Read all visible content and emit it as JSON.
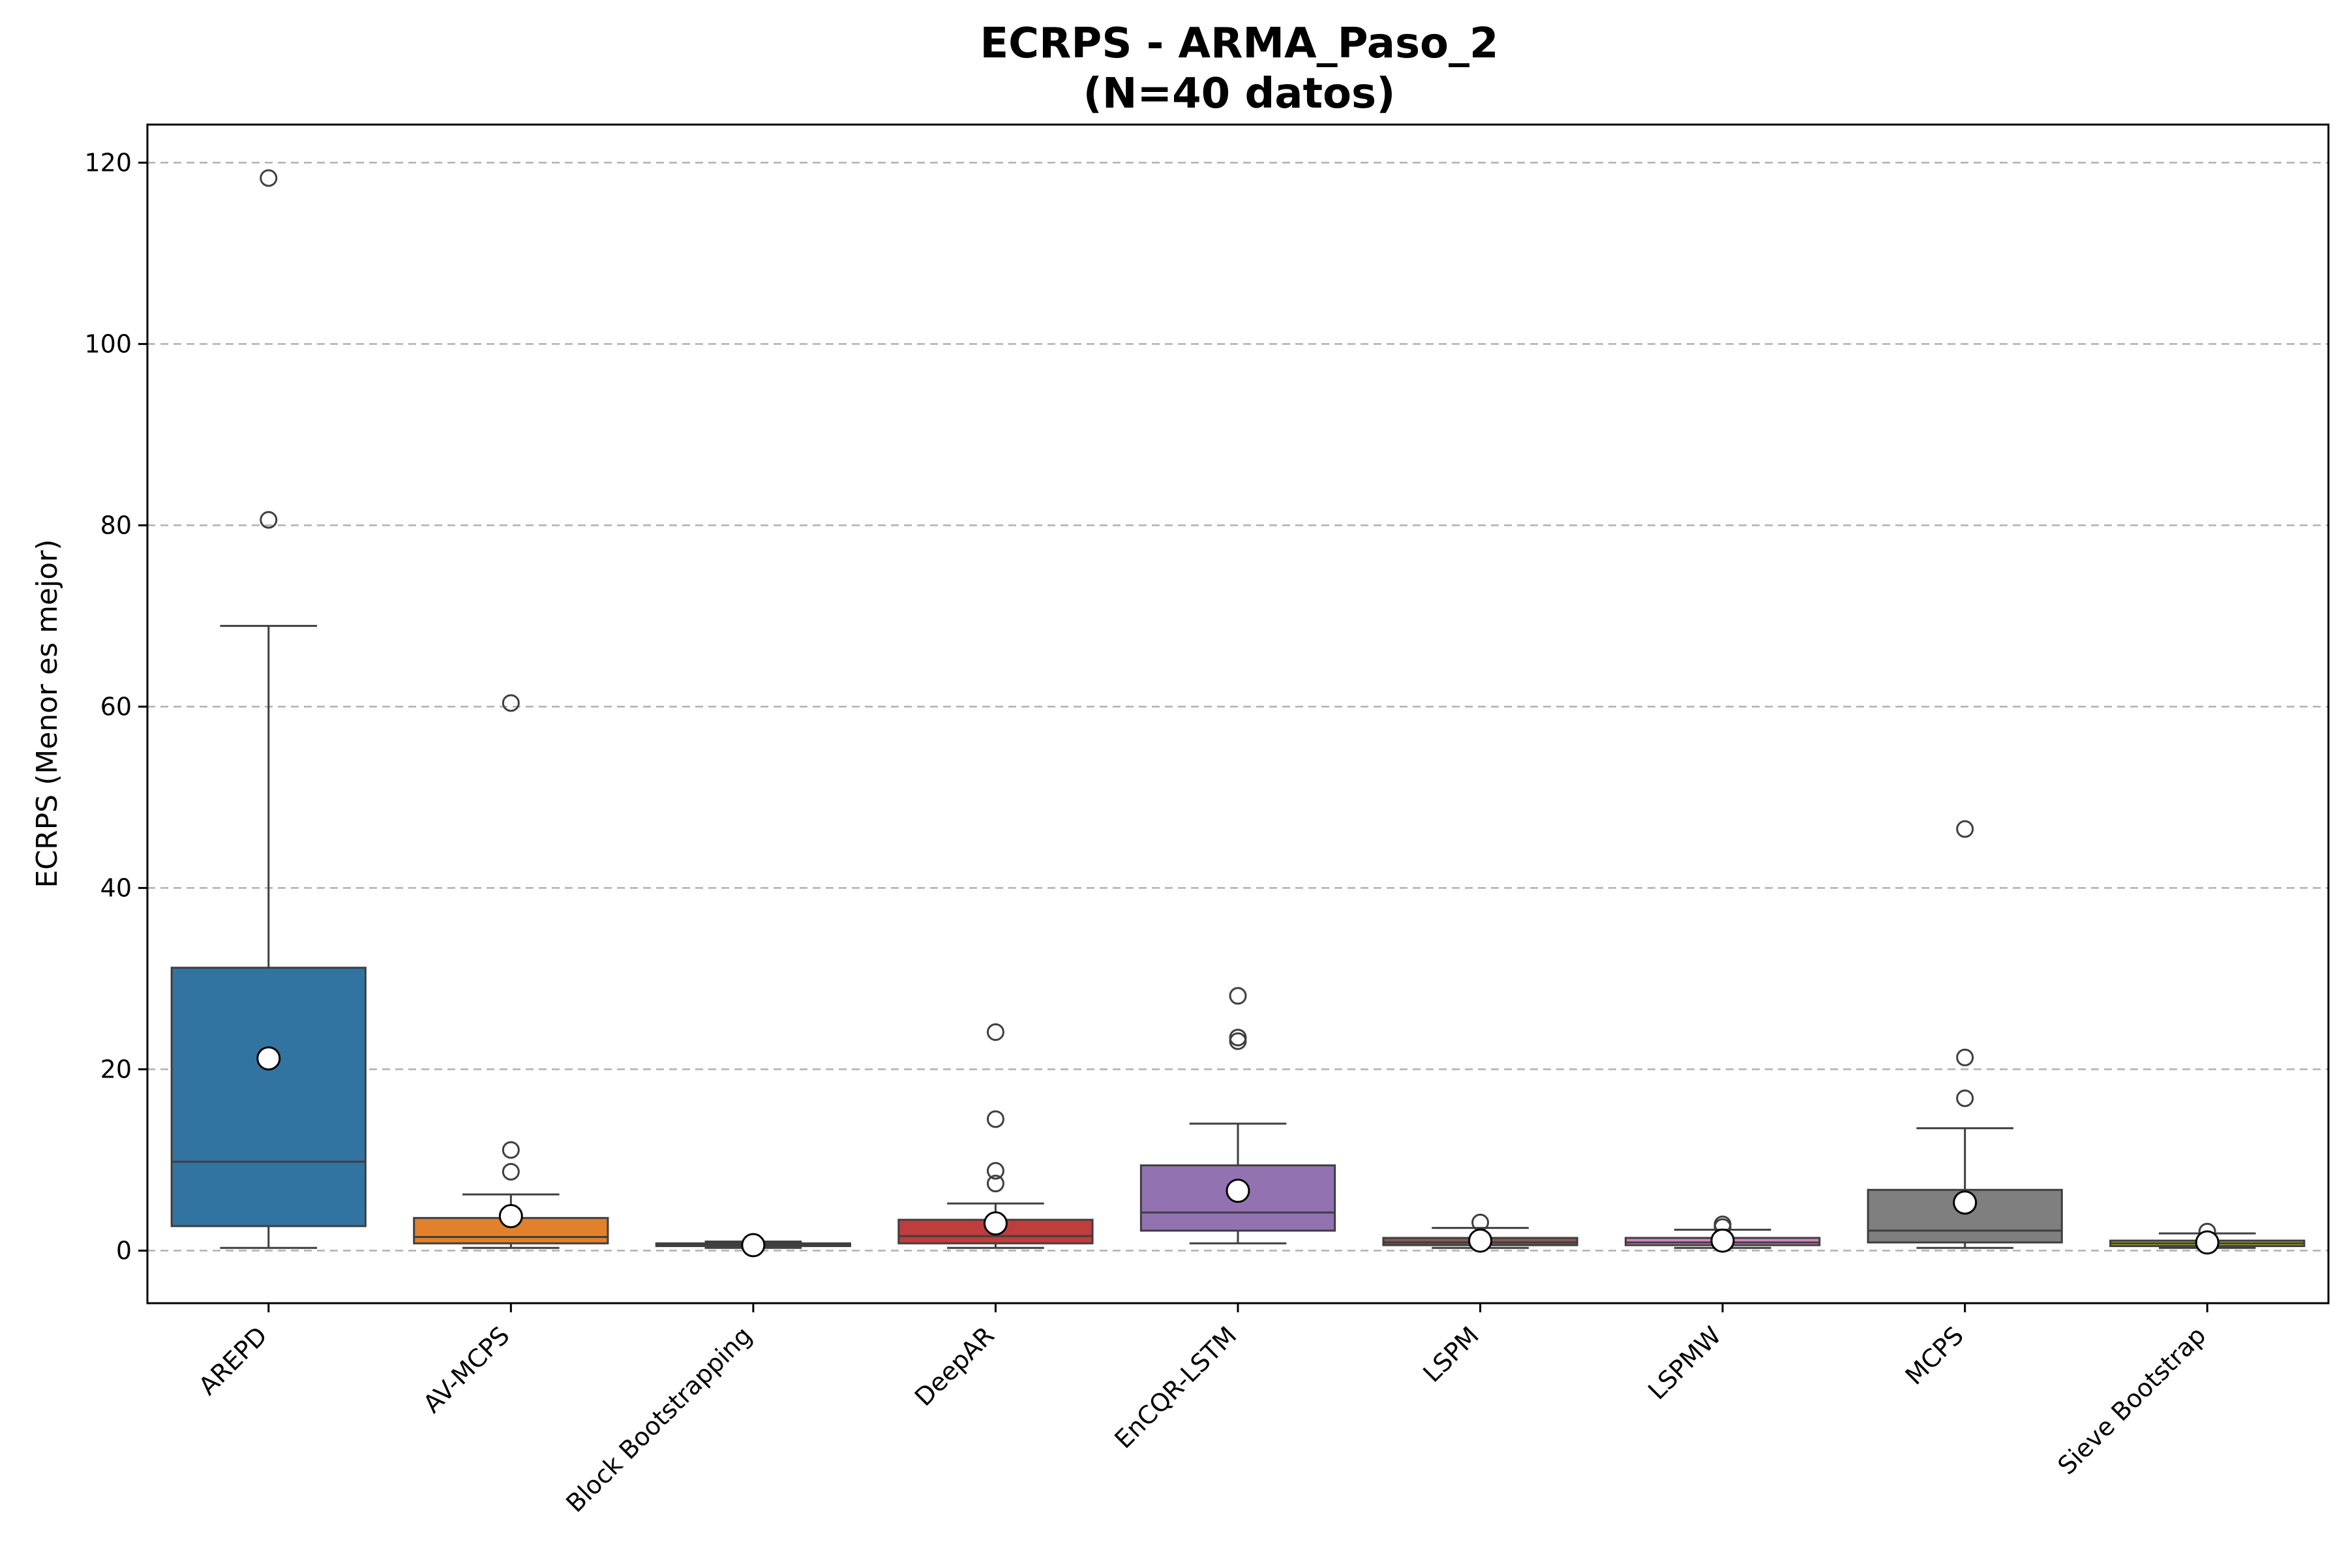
{
  "chart_data": {
    "type": "box",
    "title": "ECRPS - ARMA_Paso_2",
    "subtitle": "(N=40 datos)",
    "xlabel": "",
    "ylabel": "ECRPS (Menor es mejor)",
    "ylim": [
      -5.8,
      124.2
    ],
    "yticks": [
      0,
      20,
      40,
      60,
      80,
      100,
      120
    ],
    "grid": "y-dashed",
    "mean_marker": "white-circle",
    "categories": [
      "AREPD",
      "AV-MCPS",
      "Block Bootstrapping",
      "DeepAR",
      "EnCQR-LSTM",
      "LSPM",
      "LSPMW",
      "MCPS",
      "Sieve Bootstrap"
    ],
    "boxes": [
      {
        "name": "AREPD",
        "color": "#3274a1",
        "whisker_low": 0.3,
        "q1": 2.7,
        "median": 9.8,
        "q3": 31.2,
        "whisker_high": 68.9,
        "mean": 21.2,
        "outliers": [
          80.6,
          118.3
        ]
      },
      {
        "name": "AV-MCPS",
        "color": "#e1812c",
        "whisker_low": 0.3,
        "q1": 0.8,
        "median": 1.5,
        "q3": 3.6,
        "whisker_high": 6.2,
        "mean": 3.8,
        "outliers": [
          8.7,
          11.1,
          60.4
        ]
      },
      {
        "name": "Block Bootstrapping",
        "color": "#3a923a",
        "whisker_low": 0.3,
        "q1": 0.5,
        "median": 0.6,
        "q3": 0.8,
        "whisker_high": 1.0,
        "mean": 0.6,
        "outliers": []
      },
      {
        "name": "DeepAR",
        "color": "#c03d3e",
        "whisker_low": 0.3,
        "q1": 0.8,
        "median": 1.6,
        "q3": 3.4,
        "whisker_high": 5.2,
        "mean": 3.0,
        "outliers": [
          7.4,
          8.8,
          14.5,
          24.1
        ]
      },
      {
        "name": "EnCQR-LSTM",
        "color": "#9372b2",
        "whisker_low": 0.8,
        "q1": 2.2,
        "median": 4.2,
        "q3": 9.4,
        "whisker_high": 14.0,
        "mean": 6.6,
        "outliers": [
          23.1,
          23.5,
          28.1
        ]
      },
      {
        "name": "LSPM",
        "color": "#845b53",
        "whisker_low": 0.3,
        "q1": 0.6,
        "median": 0.9,
        "q3": 1.4,
        "whisker_high": 2.5,
        "mean": 1.1,
        "outliers": [
          3.1
        ]
      },
      {
        "name": "LSPMW",
        "color": "#d684bd",
        "whisker_low": 0.3,
        "q1": 0.6,
        "median": 0.9,
        "q3": 1.4,
        "whisker_high": 2.3,
        "mean": 1.1,
        "outliers": [
          2.6,
          2.9
        ]
      },
      {
        "name": "MCPS",
        "color": "#7f7f7f",
        "whisker_low": 0.3,
        "q1": 0.9,
        "median": 2.2,
        "q3": 6.7,
        "whisker_high": 13.5,
        "mean": 5.3,
        "outliers": [
          16.8,
          21.3,
          46.5
        ]
      },
      {
        "name": "Sieve Bootstrap",
        "color": "#a9aa35",
        "whisker_low": 0.3,
        "q1": 0.5,
        "median": 0.8,
        "q3": 1.1,
        "whisker_high": 1.9,
        "mean": 0.9,
        "outliers": [
          2.1
        ]
      }
    ]
  }
}
